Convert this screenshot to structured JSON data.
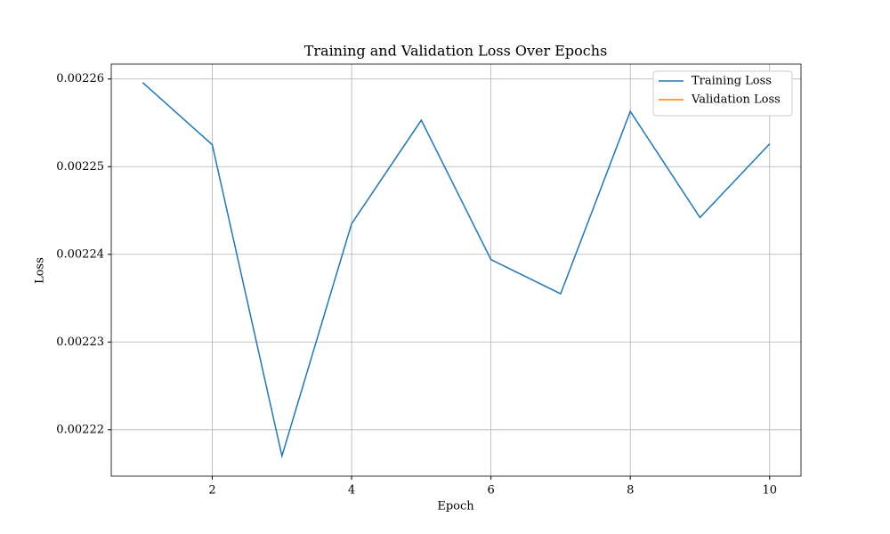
{
  "chart_data": {
    "type": "line",
    "title": "Training and Validation Loss Over Epochs",
    "x_label": "Epoch",
    "y_label": "Loss",
    "x": [
      1,
      2,
      3,
      4,
      5,
      6,
      7,
      8,
      9,
      10
    ],
    "series": [
      {
        "name": "Training Loss",
        "color": "#1f77b4",
        "values": [
          0.0022596,
          0.0022525,
          0.002217,
          0.0022435,
          0.0022553,
          0.0022394,
          0.0022355,
          0.0022563,
          0.0022442,
          0.0022526
        ]
      },
      {
        "name": "Validation Loss",
        "color": "#ff7f0e",
        "values": [
          null,
          null,
          null,
          null,
          null,
          null,
          null,
          null,
          null,
          null
        ]
      }
    ],
    "xlim": [
      0.55,
      10.45
    ],
    "xticks": [
      2,
      4,
      6,
      8,
      10
    ],
    "ylim": [
      0.0022147,
      0.0022617
    ],
    "yticks": [
      0.00222,
      0.00223,
      0.00224,
      0.00225,
      0.00226
    ],
    "grid": true,
    "legend": "upper right"
  }
}
